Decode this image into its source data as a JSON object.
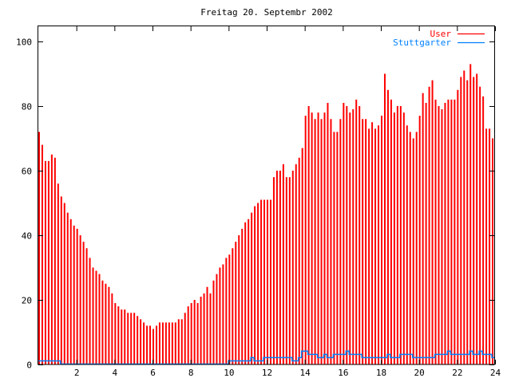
{
  "chart_data": {
    "type": "bar",
    "title": "Freitag 20. Septembr 2002",
    "xlabel": "",
    "ylabel": "",
    "xlim": [
      0,
      24
    ],
    "ylim": [
      0,
      105
    ],
    "x_step_hours": 0.16667,
    "xticks": [
      2,
      4,
      6,
      8,
      10,
      12,
      14,
      16,
      18,
      20,
      22,
      24
    ],
    "yticks": [
      0,
      20,
      40,
      60,
      80,
      100
    ],
    "grid": false,
    "legend_position": "top-right",
    "series": [
      {
        "name": "User",
        "style": "impulses",
        "color": "#ff0000",
        "values": [
          72,
          68,
          63,
          63,
          65,
          64,
          56,
          52,
          50,
          47,
          45,
          43,
          42,
          40,
          38,
          36,
          33,
          30,
          29,
          28,
          26,
          25,
          24,
          22,
          19,
          18,
          17,
          17,
          16,
          16,
          16,
          15,
          14,
          13,
          12,
          12,
          11,
          12,
          13,
          13,
          13,
          13,
          13,
          13,
          14,
          14,
          16,
          18,
          19,
          20,
          19,
          21,
          22,
          24,
          22,
          26,
          28,
          30,
          31,
          33,
          34,
          36,
          38,
          40,
          42,
          44,
          45,
          47,
          49,
          50,
          51,
          51,
          51,
          51,
          58,
          60,
          60,
          62,
          58,
          58,
          60,
          62,
          64,
          67,
          77,
          80,
          78,
          76,
          78,
          76,
          78,
          81,
          76,
          72,
          72,
          76,
          81,
          80,
          78,
          79,
          82,
          80,
          76,
          76,
          73,
          75,
          73,
          74,
          77,
          90,
          85,
          82,
          78,
          80,
          80,
          78,
          74,
          72,
          70,
          72,
          77,
          84,
          81,
          86,
          88,
          82,
          80,
          79,
          81,
          82,
          82,
          82,
          85,
          89,
          91,
          88,
          93,
          89,
          90,
          86,
          83,
          73,
          73,
          70
        ]
      },
      {
        "name": "Stuttgarter",
        "style": "steps",
        "color": "#0080ff",
        "values": [
          1,
          1,
          1,
          1,
          1,
          1,
          1,
          0,
          0,
          0,
          0,
          0,
          0,
          0,
          0,
          0,
          0,
          0,
          0,
          0,
          0,
          0,
          0,
          0,
          0,
          0,
          0,
          0,
          0,
          0,
          0,
          0,
          0,
          0,
          0,
          0,
          0,
          0,
          0,
          0,
          0,
          0,
          0,
          0,
          0,
          0,
          0,
          0,
          0,
          0,
          0,
          0,
          0,
          0,
          0,
          0,
          0,
          0,
          0,
          0,
          1,
          1,
          1,
          1,
          1,
          1,
          1,
          2,
          1,
          1,
          1,
          2,
          2,
          2,
          2,
          2,
          2,
          2,
          2,
          2,
          1,
          1,
          2,
          4,
          4,
          3,
          3,
          3,
          2,
          2,
          3,
          2,
          2,
          3,
          3,
          3,
          3,
          4,
          3,
          3,
          3,
          3,
          2,
          2,
          2,
          2,
          2,
          2,
          2,
          2,
          3,
          2,
          2,
          2,
          3,
          3,
          3,
          3,
          2,
          2,
          2,
          2,
          2,
          2,
          2,
          3,
          3,
          3,
          3,
          4,
          3,
          3,
          3,
          3,
          3,
          3,
          4,
          3,
          3,
          4,
          3,
          3,
          3,
          2
        ]
      }
    ]
  }
}
